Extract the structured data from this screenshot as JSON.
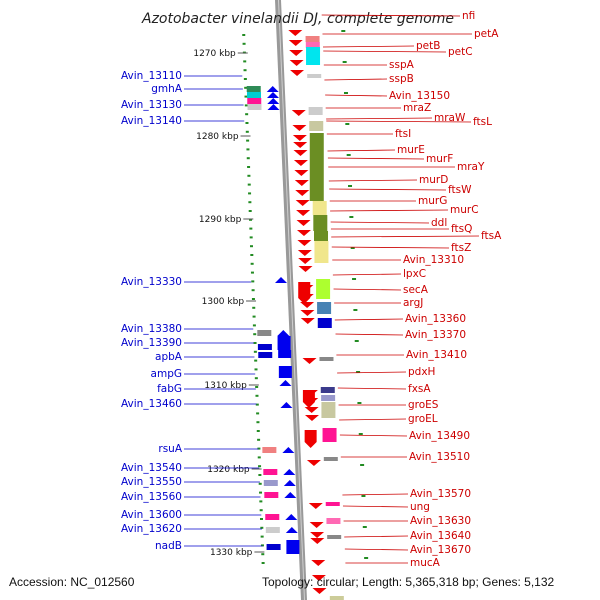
{
  "title": "Azotobacter vinelandii DJ, complete genome",
  "accession": "Accession: NC_012560",
  "topology": "Topology: circular; Length: 5,365,318 bp; Genes: 5,132",
  "kbp_labels": [
    "1270 kbp",
    "1280 kbp",
    "1290 kbp",
    "1300 kbp",
    "1310 kbp",
    "1320 kbp",
    "1330 kbp"
  ],
  "left_genes": [
    "Avin_13110",
    "gmhA",
    "Avin_13130",
    "Avin_13140",
    "Avin_13330",
    "Avin_13380",
    "Avin_13390",
    "apbA",
    "ampG",
    "fabG",
    "Avin_13460",
    "rsuA",
    "Avin_13540",
    "Avin_13550",
    "Avin_13560",
    "Avin_13600",
    "Avin_13620",
    "nadB"
  ],
  "right_genes": [
    "nfi",
    "petA",
    "petB",
    "petC",
    "sspA",
    "sspB",
    "Avin_13150",
    "mraZ",
    "mraW",
    "ftsL",
    "ftsI",
    "murE",
    "murF",
    "mraY",
    "murD",
    "ftsW",
    "murG",
    "murC",
    "ddl",
    "ftsQ",
    "ftsA",
    "ftsZ",
    "Avin_13310",
    "lpxC",
    "secA",
    "argJ",
    "Avin_13360",
    "Avin_13370",
    "Avin_13410",
    "pdxH",
    "fxsA",
    "groES",
    "groEL",
    "Avin_13490",
    "Avin_13510",
    "Avin_13570",
    "ung",
    "Avin_13630",
    "Avin_13640",
    "Avin_13670",
    "mucA"
  ],
  "colors": {
    "forward_strand": "#0000ee",
    "reverse_strand": "#ee0000",
    "left_label": "#0000cc",
    "right_label": "#cc0000",
    "backbone": "#999999",
    "tick": "#228b22",
    "olive_block": "#6b8e23",
    "pale_block": "#f0e68c",
    "cyan_block": "#00e5ee",
    "pink_block": "#ff1493"
  }
}
